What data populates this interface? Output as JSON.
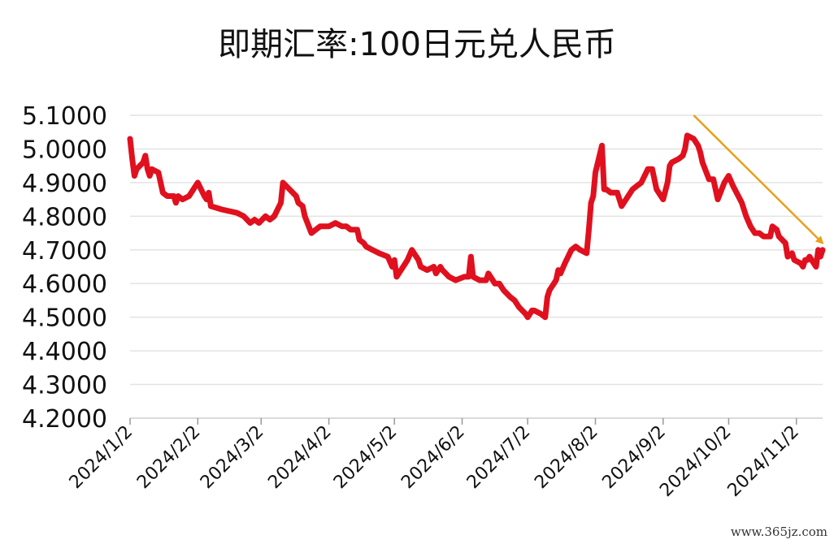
{
  "chart_data": {
    "type": "line",
    "title": "即期汇率:100日元兑人民币",
    "xlabel": "",
    "ylabel": "",
    "ylim": [
      4.2,
      5.1
    ],
    "yticks": [
      "5.1000",
      "5.0000",
      "4.9000",
      "4.8000",
      "4.7000",
      "4.6000",
      "4.5000",
      "4.4000",
      "4.3000",
      "4.2000"
    ],
    "xticks": [
      "2024/1/2",
      "2024/2/2",
      "2024/3/2",
      "2024/4/2",
      "2024/5/2",
      "2024/6/2",
      "2024/7/2",
      "2024/8/2",
      "2024/9/2",
      "2024/10/2",
      "2024/11/2"
    ],
    "grid": true,
    "line_color": "#e0101e",
    "annotation_arrow_color": "#e8a01c",
    "series": [
      {
        "points": [
          [
            "2024-01-02",
            5.03
          ],
          [
            "2024-01-03",
            4.97
          ],
          [
            "2024-01-04",
            4.92
          ],
          [
            "2024-01-05",
            4.94
          ],
          [
            "2024-01-08",
            4.96
          ],
          [
            "2024-01-09",
            4.98
          ],
          [
            "2024-01-10",
            4.94
          ],
          [
            "2024-01-11",
            4.92
          ],
          [
            "2024-01-12",
            4.94
          ],
          [
            "2024-01-15",
            4.93
          ],
          [
            "2024-01-16",
            4.9
          ],
          [
            "2024-01-17",
            4.87
          ],
          [
            "2024-01-19",
            4.86
          ],
          [
            "2024-01-22",
            4.86
          ],
          [
            "2024-01-23",
            4.84
          ],
          [
            "2024-01-24",
            4.86
          ],
          [
            "2024-01-26",
            4.85
          ],
          [
            "2024-01-29",
            4.86
          ],
          [
            "2024-01-31",
            4.88
          ],
          [
            "2024-02-02",
            4.9
          ],
          [
            "2024-02-05",
            4.86
          ],
          [
            "2024-02-06",
            4.85
          ],
          [
            "2024-02-07",
            4.87
          ],
          [
            "2024-02-08",
            4.83
          ],
          [
            "2024-02-13",
            4.82
          ],
          [
            "2024-02-20",
            4.81
          ],
          [
            "2024-02-23",
            4.8
          ],
          [
            "2024-02-26",
            4.78
          ],
          [
            "2024-02-28",
            4.79
          ],
          [
            "2024-03-01",
            4.78
          ],
          [
            "2024-03-04",
            4.8
          ],
          [
            "2024-03-06",
            4.79
          ],
          [
            "2024-03-08",
            4.8
          ],
          [
            "2024-03-11",
            4.84
          ],
          [
            "2024-03-12",
            4.9
          ],
          [
            "2024-03-15",
            4.88
          ],
          [
            "2024-03-18",
            4.86
          ],
          [
            "2024-03-19",
            4.84
          ],
          [
            "2024-03-21",
            4.83
          ],
          [
            "2024-03-22",
            4.8
          ],
          [
            "2024-03-25",
            4.75
          ],
          [
            "2024-03-27",
            4.76
          ],
          [
            "2024-03-29",
            4.77
          ],
          [
            "2024-04-02",
            4.77
          ],
          [
            "2024-04-05",
            4.78
          ],
          [
            "2024-04-08",
            4.77
          ],
          [
            "2024-04-10",
            4.77
          ],
          [
            "2024-04-12",
            4.76
          ],
          [
            "2024-04-15",
            4.76
          ],
          [
            "2024-04-16",
            4.73
          ],
          [
            "2024-04-18",
            4.72
          ],
          [
            "2024-04-19",
            4.71
          ],
          [
            "2024-04-22",
            4.7
          ],
          [
            "2024-04-25",
            4.69
          ],
          [
            "2024-04-29",
            4.68
          ],
          [
            "2024-05-01",
            4.65
          ],
          [
            "2024-05-02",
            4.67
          ],
          [
            "2024-05-03",
            4.62
          ],
          [
            "2024-05-06",
            4.65
          ],
          [
            "2024-05-08",
            4.67
          ],
          [
            "2024-05-10",
            4.7
          ],
          [
            "2024-05-13",
            4.67
          ],
          [
            "2024-05-14",
            4.65
          ],
          [
            "2024-05-17",
            4.64
          ],
          [
            "2024-05-20",
            4.65
          ],
          [
            "2024-05-21",
            4.63
          ],
          [
            "2024-05-23",
            4.65
          ],
          [
            "2024-05-24",
            4.64
          ],
          [
            "2024-05-27",
            4.62
          ],
          [
            "2024-05-30",
            4.61
          ],
          [
            "2024-06-03",
            4.62
          ],
          [
            "2024-06-05",
            4.62
          ],
          [
            "2024-06-06",
            4.68
          ],
          [
            "2024-06-07",
            4.62
          ],
          [
            "2024-06-10",
            4.61
          ],
          [
            "2024-06-13",
            4.61
          ],
          [
            "2024-06-14",
            4.63
          ],
          [
            "2024-06-17",
            4.6
          ],
          [
            "2024-06-19",
            4.6
          ],
          [
            "2024-06-21",
            4.58
          ],
          [
            "2024-06-24",
            4.56
          ],
          [
            "2024-06-26",
            4.55
          ],
          [
            "2024-06-28",
            4.53
          ],
          [
            "2024-07-01",
            4.51
          ],
          [
            "2024-07-02",
            4.5
          ],
          [
            "2024-07-04",
            4.52
          ],
          [
            "2024-07-05",
            4.52
          ],
          [
            "2024-07-08",
            4.51
          ],
          [
            "2024-07-10",
            4.5
          ],
          [
            "2024-07-11",
            4.56
          ],
          [
            "2024-07-12",
            4.58
          ],
          [
            "2024-07-15",
            4.61
          ],
          [
            "2024-07-16",
            4.64
          ],
          [
            "2024-07-17",
            4.63
          ],
          [
            "2024-07-19",
            4.66
          ],
          [
            "2024-07-22",
            4.7
          ],
          [
            "2024-07-24",
            4.71
          ],
          [
            "2024-07-26",
            4.7
          ],
          [
            "2024-07-29",
            4.69
          ],
          [
            "2024-07-30",
            4.76
          ],
          [
            "2024-07-31",
            4.84
          ],
          [
            "2024-08-01",
            4.86
          ],
          [
            "2024-08-02",
            4.93
          ],
          [
            "2024-08-05",
            5.01
          ],
          [
            "2024-08-06",
            4.88
          ],
          [
            "2024-08-07",
            4.88
          ],
          [
            "2024-08-09",
            4.87
          ],
          [
            "2024-08-12",
            4.87
          ],
          [
            "2024-08-14",
            4.83
          ],
          [
            "2024-08-16",
            4.85
          ],
          [
            "2024-08-19",
            4.88
          ],
          [
            "2024-08-21",
            4.89
          ],
          [
            "2024-08-23",
            4.9
          ],
          [
            "2024-08-26",
            4.94
          ],
          [
            "2024-08-28",
            4.94
          ],
          [
            "2024-08-30",
            4.88
          ],
          [
            "2024-09-02",
            4.85
          ],
          [
            "2024-09-04",
            4.9
          ],
          [
            "2024-09-05",
            4.95
          ],
          [
            "2024-09-06",
            4.96
          ],
          [
            "2024-09-09",
            4.97
          ],
          [
            "2024-09-11",
            4.98
          ],
          [
            "2024-09-12",
            5.0
          ],
          [
            "2024-09-13",
            5.04
          ],
          [
            "2024-09-16",
            5.03
          ],
          [
            "2024-09-18",
            5.01
          ],
          [
            "2024-09-19",
            4.99
          ],
          [
            "2024-09-20",
            4.96
          ],
          [
            "2024-09-23",
            4.91
          ],
          [
            "2024-09-25",
            4.91
          ],
          [
            "2024-09-26",
            4.88
          ],
          [
            "2024-09-27",
            4.85
          ],
          [
            "2024-09-30",
            4.9
          ],
          [
            "2024-10-02",
            4.92
          ],
          [
            "2024-10-04",
            4.89
          ],
          [
            "2024-10-08",
            4.84
          ],
          [
            "2024-10-10",
            4.8
          ],
          [
            "2024-10-12",
            4.77
          ],
          [
            "2024-10-14",
            4.75
          ],
          [
            "2024-10-16",
            4.75
          ],
          [
            "2024-10-18",
            4.74
          ],
          [
            "2024-10-21",
            4.74
          ],
          [
            "2024-10-22",
            4.77
          ],
          [
            "2024-10-24",
            4.76
          ],
          [
            "2024-10-25",
            4.74
          ],
          [
            "2024-10-28",
            4.72
          ],
          [
            "2024-10-29",
            4.68
          ],
          [
            "2024-10-31",
            4.69
          ],
          [
            "2024-11-01",
            4.67
          ],
          [
            "2024-11-04",
            4.66
          ],
          [
            "2024-11-05",
            4.65
          ],
          [
            "2024-11-06",
            4.67
          ],
          [
            "2024-11-07",
            4.67
          ],
          [
            "2024-11-08",
            4.68
          ],
          [
            "2024-11-11",
            4.65
          ],
          [
            "2024-11-12",
            4.7
          ],
          [
            "2024-11-13",
            4.68
          ],
          [
            "2024-11-14",
            4.7
          ]
        ]
      }
    ],
    "annotation": "downward trend arrow from mid-September peak toward mid-November"
  },
  "watermark": "www.365jz.com"
}
